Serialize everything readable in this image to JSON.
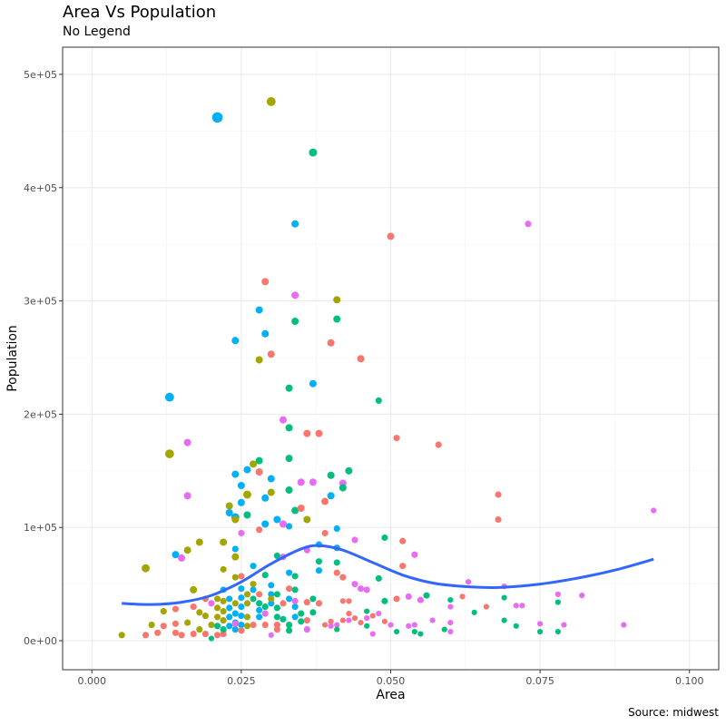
{
  "chart_data": {
    "type": "scatter",
    "title": "Area Vs Population",
    "subtitle": "No Legend",
    "caption": "Source: midwest",
    "xlabel": "Area",
    "ylabel": "Population",
    "xlim": [
      -0.0049,
      0.1049
    ],
    "ylim": [
      -25600,
      524000
    ],
    "xticks": [
      0,
      0.025,
      0.05,
      0.075,
      0.1
    ],
    "xtick_labels": [
      "0.000",
      "0.025",
      "0.050",
      "0.075",
      "0.100"
    ],
    "yticks": [
      0,
      100000,
      200000,
      300000,
      400000,
      500000
    ],
    "ytick_labels": [
      "0e+00",
      "1e+05",
      "2e+05",
      "3e+05",
      "4e+05",
      "5e+05"
    ],
    "grid": true,
    "legend": "none",
    "group_colors": [
      "#F8766D",
      "#A3A500",
      "#00BF7D",
      "#00B0F6",
      "#E76BF3"
    ],
    "smooth_color": "#3366FF",
    "smooth": [
      [
        0.005,
        33000
      ],
      [
        0.01,
        32000
      ],
      [
        0.015,
        34000
      ],
      [
        0.02,
        40000
      ],
      [
        0.025,
        52000
      ],
      [
        0.03,
        68000
      ],
      [
        0.035,
        81000
      ],
      [
        0.038,
        84000
      ],
      [
        0.042,
        80000
      ],
      [
        0.047,
        69000
      ],
      [
        0.052,
        58000
      ],
      [
        0.057,
        51000
      ],
      [
        0.062,
        48000
      ],
      [
        0.068,
        47000
      ],
      [
        0.075,
        50000
      ],
      [
        0.082,
        56000
      ],
      [
        0.088,
        63000
      ],
      [
        0.094,
        72000
      ]
    ],
    "points": [
      [
        0.021,
        462000,
        3,
        5
      ],
      [
        0.03,
        476000,
        1,
        4
      ],
      [
        0.037,
        431000,
        2,
        3.5
      ],
      [
        0.034,
        368000,
        3,
        3
      ],
      [
        0.05,
        357000,
        0,
        3
      ],
      [
        0.073,
        368000,
        4,
        2.5
      ],
      [
        0.029,
        317000,
        0,
        3
      ],
      [
        0.034,
        305000,
        4,
        3
      ],
      [
        0.041,
        301000,
        1,
        3
      ],
      [
        0.028,
        292000,
        3,
        3
      ],
      [
        0.034,
        282000,
        2,
        3
      ],
      [
        0.041,
        284000,
        2,
        3
      ],
      [
        0.029,
        271000,
        3,
        3
      ],
      [
        0.024,
        265000,
        3,
        3
      ],
      [
        0.04,
        263000,
        0,
        3
      ],
      [
        0.03,
        253000,
        0,
        3
      ],
      [
        0.028,
        248000,
        1,
        3
      ],
      [
        0.045,
        249000,
        0,
        3
      ],
      [
        0.037,
        227000,
        3,
        3
      ],
      [
        0.033,
        223000,
        2,
        3
      ],
      [
        0.013,
        215000,
        3,
        4
      ],
      [
        0.048,
        212000,
        2,
        2.5
      ],
      [
        0.032,
        195000,
        4,
        3
      ],
      [
        0.033,
        188000,
        2,
        3
      ],
      [
        0.036,
        183000,
        0,
        3
      ],
      [
        0.038,
        183000,
        0,
        3
      ],
      [
        0.051,
        179000,
        0,
        2.5
      ],
      [
        0.016,
        175000,
        4,
        3
      ],
      [
        0.058,
        173000,
        0,
        2.5
      ],
      [
        0.013,
        165000,
        1,
        4
      ],
      [
        0.033,
        161000,
        2,
        3
      ],
      [
        0.028,
        159000,
        2,
        3
      ],
      [
        0.027,
        156000,
        1,
        3
      ],
      [
        0.026,
        151000,
        3,
        3
      ],
      [
        0.043,
        150000,
        2,
        3
      ],
      [
        0.024,
        147000,
        3,
        3
      ],
      [
        0.028,
        149000,
        0,
        3
      ],
      [
        0.04,
        146000,
        2,
        3
      ],
      [
        0.03,
        143000,
        3,
        3
      ],
      [
        0.035,
        140000,
        4,
        3
      ],
      [
        0.037,
        140000,
        4,
        3
      ],
      [
        0.042,
        139000,
        4,
        3
      ],
      [
        0.042,
        135000,
        2,
        3
      ],
      [
        0.025,
        137000,
        3,
        3
      ],
      [
        0.033,
        133000,
        2,
        3
      ],
      [
        0.03,
        131000,
        1,
        3
      ],
      [
        0.026,
        129000,
        1,
        3.5
      ],
      [
        0.068,
        129000,
        0,
        2.5
      ],
      [
        0.016,
        128000,
        4,
        3
      ],
      [
        0.04,
        128000,
        3,
        3
      ],
      [
        0.029,
        126000,
        3,
        3
      ],
      [
        0.039,
        123000,
        0,
        3
      ],
      [
        0.025,
        122000,
        3,
        3
      ],
      [
        0.023,
        119000,
        1,
        3
      ],
      [
        0.034,
        115000,
        2,
        3
      ],
      [
        0.035,
        117000,
        0,
        3
      ],
      [
        0.094,
        115000,
        4,
        2
      ],
      [
        0.023,
        113000,
        3,
        3
      ],
      [
        0.026,
        111000,
        2,
        3
      ],
      [
        0.024,
        109000,
        3,
        3.5
      ],
      [
        0.024,
        107000,
        1,
        3
      ],
      [
        0.031,
        107000,
        3,
        3
      ],
      [
        0.036,
        107000,
        1,
        3
      ],
      [
        0.068,
        107000,
        0,
        2.5
      ],
      [
        0.029,
        103000,
        3,
        3
      ],
      [
        0.032,
        103000,
        4,
        3
      ],
      [
        0.033,
        101000,
        3,
        2.5
      ],
      [
        0.041,
        99000,
        3,
        2.5
      ],
      [
        0.025,
        95000,
        4,
        2.5
      ],
      [
        0.039,
        95000,
        0,
        2.5
      ],
      [
        0.028,
        98000,
        0,
        2.5
      ],
      [
        0.049,
        91000,
        2,
        2.5
      ],
      [
        0.044,
        89000,
        4,
        2.5
      ],
      [
        0.018,
        87000,
        1,
        3
      ],
      [
        0.022,
        87000,
        1,
        3
      ],
      [
        0.052,
        88000,
        0,
        2.5
      ],
      [
        0.038,
        85000,
        3,
        2.5
      ],
      [
        0.016,
        80000,
        1,
        3
      ],
      [
        0.024,
        81000,
        3,
        2.5
      ],
      [
        0.041,
        82000,
        3,
        2.5
      ],
      [
        0.036,
        80000,
        4,
        2.5
      ],
      [
        0.014,
        76000,
        3,
        3
      ],
      [
        0.031,
        75000,
        2,
        2.5
      ],
      [
        0.032,
        74000,
        4,
        2.5
      ],
      [
        0.015,
        73000,
        4,
        3
      ],
      [
        0.024,
        74000,
        1,
        3
      ],
      [
        0.054,
        76000,
        4,
        2.5
      ],
      [
        0.038,
        70000,
        2,
        2.5
      ],
      [
        0.041,
        69000,
        2,
        2.5
      ],
      [
        0.027,
        66000,
        3,
        2.5
      ],
      [
        0.052,
        66000,
        0,
        2.5
      ],
      [
        0.009,
        64000,
        1,
        3.5
      ],
      [
        0.022,
        63000,
        1,
        2.5
      ],
      [
        0.038,
        62000,
        3,
        2.5
      ],
      [
        0.033,
        60000,
        3,
        2.5
      ],
      [
        0.029,
        58000,
        2,
        2.5
      ],
      [
        0.034,
        57000,
        2,
        2.5
      ],
      [
        0.041,
        60000,
        0,
        2.5
      ],
      [
        0.042,
        56000,
        0,
        2.5
      ],
      [
        0.048,
        55000,
        2,
        2.5
      ],
      [
        0.063,
        52000,
        4,
        2
      ],
      [
        0.025,
        57000,
        0,
        2.5
      ],
      [
        0.024,
        56000,
        1,
        2.5
      ],
      [
        0.044,
        50000,
        4,
        2.5
      ],
      [
        0.045,
        46000,
        4,
        2.5
      ],
      [
        0.046,
        45000,
        4,
        2.5
      ],
      [
        0.069,
        48000,
        4,
        2
      ],
      [
        0.017,
        45000,
        1,
        3
      ],
      [
        0.056,
        40000,
        2,
        2.5
      ],
      [
        0.062,
        39000,
        0,
        2
      ],
      [
        0.069,
        38000,
        2,
        2
      ],
      [
        0.053,
        39000,
        4,
        2.5
      ],
      [
        0.055,
        36000,
        4,
        2.5
      ],
      [
        0.049,
        35000,
        2,
        2.5
      ],
      [
        0.051,
        37000,
        0,
        2.5
      ],
      [
        0.078,
        41000,
        4,
        2
      ],
      [
        0.078,
        34000,
        2,
        2
      ],
      [
        0.082,
        40000,
        4,
        2
      ],
      [
        0.06,
        36000,
        2,
        2
      ],
      [
        0.071,
        31000,
        4,
        2
      ],
      [
        0.072,
        31000,
        4,
        2
      ],
      [
        0.066,
        30000,
        0,
        2
      ],
      [
        0.064,
        25000,
        2,
        2
      ],
      [
        0.017,
        30000,
        0,
        2.5
      ],
      [
        0.06,
        30000,
        4,
        2
      ],
      [
        0.012,
        26000,
        1,
        2.5
      ],
      [
        0.014,
        28000,
        0,
        2.5
      ],
      [
        0.069,
        18000,
        2,
        2
      ],
      [
        0.075,
        15000,
        4,
        2
      ],
      [
        0.071,
        13000,
        2,
        2
      ],
      [
        0.079,
        14000,
        4,
        2
      ],
      [
        0.089,
        14000,
        4,
        2
      ],
      [
        0.075,
        8000,
        2,
        2
      ],
      [
        0.078,
        8000,
        2,
        2
      ],
      [
        0.057,
        18000,
        4,
        2
      ],
      [
        0.06,
        16000,
        4,
        2
      ],
      [
        0.06,
        8000,
        4,
        2
      ],
      [
        0.059,
        10000,
        2,
        2
      ],
      [
        0.055,
        6000,
        2,
        2
      ],
      [
        0.054,
        14000,
        4,
        2
      ],
      [
        0.053,
        13000,
        4,
        2
      ],
      [
        0.051,
        8000,
        2,
        2
      ],
      [
        0.05,
        14000,
        4,
        2
      ],
      [
        0.054,
        8000,
        2,
        2
      ],
      [
        0.005,
        5000,
        1,
        2.5
      ],
      [
        0.01,
        14000,
        1,
        2.5
      ],
      [
        0.009,
        5000,
        0,
        2.5
      ],
      [
        0.011,
        7000,
        0,
        2.5
      ],
      [
        0.012,
        13000,
        0,
        2.5
      ],
      [
        0.014,
        15000,
        0,
        2.5
      ],
      [
        0.014,
        7000,
        0,
        2.5
      ],
      [
        0.015,
        5000,
        0,
        2.5
      ],
      [
        0.016,
        16000,
        1,
        2.5
      ],
      [
        0.018,
        10000,
        1,
        2.5
      ],
      [
        0.017,
        6000,
        0,
        2.5
      ],
      [
        0.019,
        6000,
        0,
        2.5
      ],
      [
        0.019,
        22000,
        1,
        2.5
      ],
      [
        0.02,
        14000,
        1,
        2.5
      ],
      [
        0.02,
        2000,
        2,
        2
      ],
      [
        0.021,
        5000,
        0,
        2.5
      ],
      [
        0.022,
        6000,
        0,
        2.5
      ],
      [
        0.021,
        37000,
        1,
        2.5
      ],
      [
        0.021,
        29000,
        1,
        2.5
      ],
      [
        0.021,
        21000,
        1,
        2.5
      ],
      [
        0.022,
        35000,
        1,
        2.5
      ],
      [
        0.022,
        26000,
        1,
        2.5
      ],
      [
        0.022,
        18000,
        1,
        2.5
      ],
      [
        0.023,
        37000,
        3,
        2.5
      ],
      [
        0.023,
        29000,
        3,
        2.5
      ],
      [
        0.023,
        21000,
        3,
        2.5
      ],
      [
        0.023,
        13000,
        3,
        2.5
      ],
      [
        0.024,
        33000,
        1,
        2.5
      ],
      [
        0.024,
        24000,
        3,
        2.5
      ],
      [
        0.024,
        16000,
        3,
        2.5
      ],
      [
        0.024,
        10000,
        3,
        2.5
      ],
      [
        0.025,
        46000,
        3,
        2.5
      ],
      [
        0.025,
        38000,
        3,
        2.5
      ],
      [
        0.025,
        30000,
        3,
        2.5
      ],
      [
        0.025,
        22000,
        3,
        2.5
      ],
      [
        0.025,
        14000,
        3,
        2.5
      ],
      [
        0.026,
        41000,
        1,
        2.5
      ],
      [
        0.026,
        33000,
        1,
        2.5
      ],
      [
        0.026,
        21000,
        1,
        2.5
      ],
      [
        0.026,
        13000,
        1,
        2.5
      ],
      [
        0.027,
        14000,
        0,
        2.5
      ],
      [
        0.027,
        37000,
        2,
        2.5
      ],
      [
        0.028,
        33000,
        2,
        2.5
      ],
      [
        0.028,
        27000,
        3,
        2.5
      ],
      [
        0.028,
        21000,
        3,
        2.5
      ],
      [
        0.029,
        14000,
        0,
        2.5
      ],
      [
        0.029,
        30000,
        2,
        2.5
      ],
      [
        0.03,
        49000,
        3,
        2.5
      ],
      [
        0.03,
        41000,
        3,
        2.5
      ],
      [
        0.03,
        33000,
        3,
        2.5
      ],
      [
        0.03,
        37000,
        1,
        2.5
      ],
      [
        0.031,
        41000,
        2,
        2.5
      ],
      [
        0.031,
        29000,
        2,
        2.5
      ],
      [
        0.031,
        21000,
        2,
        2.5
      ],
      [
        0.031,
        14000,
        0,
        2.5
      ],
      [
        0.032,
        33000,
        0,
        2.5
      ],
      [
        0.032,
        19000,
        2,
        2.5
      ],
      [
        0.033,
        14000,
        2,
        2.5
      ],
      [
        0.033,
        9000,
        2,
        2.5
      ],
      [
        0.033,
        37000,
        3,
        2.5
      ],
      [
        0.034,
        30000,
        3,
        2.5
      ],
      [
        0.034,
        21000,
        3,
        2.5
      ],
      [
        0.035,
        24000,
        2,
        2.5
      ],
      [
        0.035,
        17000,
        2,
        2.5
      ],
      [
        0.036,
        34000,
        0,
        2.5
      ],
      [
        0.036,
        18000,
        0,
        2.5
      ],
      [
        0.034,
        35000,
        4,
        2.5
      ],
      [
        0.036,
        10000,
        4,
        2.5
      ],
      [
        0.037,
        37000,
        2,
        2.5
      ],
      [
        0.037,
        25000,
        2,
        2.5
      ],
      [
        0.038,
        33000,
        0,
        2.5
      ],
      [
        0.039,
        14000,
        0,
        2
      ],
      [
        0.04,
        17000,
        0,
        2
      ],
      [
        0.04,
        13000,
        4,
        2
      ],
      [
        0.041,
        14000,
        4,
        2
      ],
      [
        0.041,
        10000,
        2,
        2
      ],
      [
        0.042,
        18000,
        0,
        2
      ],
      [
        0.042,
        35000,
        0,
        2
      ],
      [
        0.043,
        35000,
        0,
        2
      ],
      [
        0.043,
        24000,
        0,
        2
      ],
      [
        0.043,
        18000,
        4,
        2
      ],
      [
        0.044,
        20000,
        0,
        2
      ],
      [
        0.045,
        16000,
        0,
        2
      ],
      [
        0.046,
        26000,
        2,
        2
      ],
      [
        0.046,
        20000,
        4,
        2
      ],
      [
        0.047,
        22000,
        0,
        2
      ],
      [
        0.047,
        6000,
        4,
        2
      ],
      [
        0.049,
        17000,
        0,
        2
      ],
      [
        0.048,
        24000,
        4,
        2
      ],
      [
        0.046,
        13000,
        2,
        2
      ],
      [
        0.034,
        45000,
        2,
        2.5
      ],
      [
        0.033,
        46000,
        0,
        2.5
      ],
      [
        0.029,
        24000,
        4,
        2.5
      ],
      [
        0.031,
        10000,
        0,
        2.5
      ],
      [
        0.022,
        45000,
        3,
        2.5
      ],
      [
        0.027,
        45000,
        3,
        2.5
      ],
      [
        0.027,
        50000,
        1,
        2.5
      ],
      [
        0.028,
        41000,
        0,
        2.5
      ],
      [
        0.03,
        5000,
        4,
        2
      ],
      [
        0.018,
        25000,
        1,
        2.5
      ],
      [
        0.019,
        37000,
        0,
        2.5
      ],
      [
        0.02,
        33000,
        4,
        2.5
      ],
      [
        0.021,
        13000,
        2,
        2.5
      ],
      [
        0.022,
        10000,
        2,
        2.5
      ],
      [
        0.024,
        15000,
        4,
        2.5
      ],
      [
        0.025,
        9000,
        0,
        2.5
      ]
    ]
  }
}
